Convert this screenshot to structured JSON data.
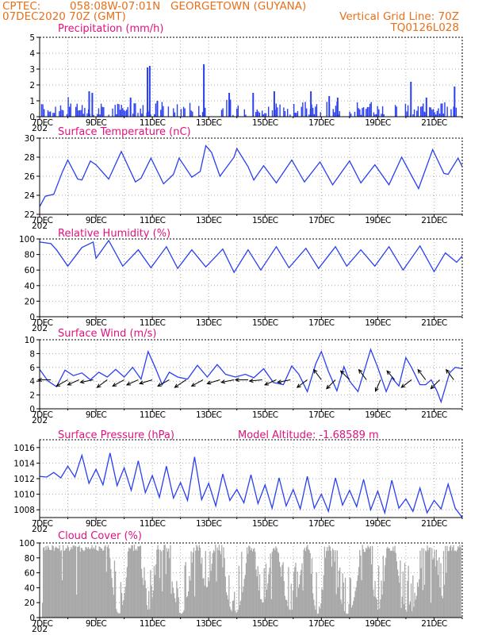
{
  "header": {
    "source": "CPTEC:",
    "location": "058:08W-07:01N   GEORGETOWN (GUYANA)",
    "run": "07DEC2020 70Z (GMT)",
    "grid": "Vertical Grid Line: 70Z",
    "code": "TQ0126L028"
  },
  "colors": {
    "header": "#e8701a",
    "title": "#e0117f",
    "line": "#2a3ff0",
    "bar": "#2a3ff0",
    "cloud": "#a8a8a8",
    "arrow": "#000000",
    "grid": "#999999"
  },
  "x_labels": [
    "7DEC",
    "9DEC",
    "11DEC",
    "13DEC",
    "15DEC",
    "17DEC",
    "19DEC",
    "21DEC"
  ],
  "x_start_label": "7DEC",
  "x_year": "202",
  "chart_data": [
    {
      "id": "precip",
      "type": "bar",
      "title": "Precipitation (mm/h)",
      "ylim": [
        0,
        5
      ],
      "yticks": [
        0,
        1,
        2,
        3,
        4,
        5
      ],
      "x_days": [
        0,
        15
      ],
      "gaps": [
        [
          5.9,
          6.4
        ],
        [
          12.2,
          12.6
        ]
      ],
      "peaks": [
        {
          "x": 1.73,
          "y": 1.6
        },
        {
          "x": 1.84,
          "y": 1.5
        },
        {
          "x": 3.8,
          "y": 3.1
        },
        {
          "x": 3.88,
          "y": 3.2
        },
        {
          "x": 3.2,
          "y": 1.2
        },
        {
          "x": 4.15,
          "y": 1.0
        },
        {
          "x": 5.8,
          "y": 3.3
        },
        {
          "x": 6.7,
          "y": 1.5
        },
        {
          "x": 7.55,
          "y": 1.5
        },
        {
          "x": 8.3,
          "y": 1.6
        },
        {
          "x": 9.6,
          "y": 1.6
        },
        {
          "x": 10.25,
          "y": 1.3
        },
        {
          "x": 10.55,
          "y": 1.2
        },
        {
          "x": 13.15,
          "y": 2.2
        },
        {
          "x": 13.7,
          "y": 1.2
        },
        {
          "x": 14.7,
          "y": 1.9
        }
      ]
    },
    {
      "id": "temp",
      "type": "line",
      "title": "Surface Temperature (nC)",
      "ylim": [
        22,
        30
      ],
      "yticks": [
        22,
        24,
        26,
        28,
        30
      ],
      "x_days": [
        0,
        15
      ],
      "points": [
        [
          0,
          22.8
        ],
        [
          0.2,
          23.9
        ],
        [
          0.5,
          24.1
        ],
        [
          0.8,
          26.4
        ],
        [
          1.0,
          27.7
        ],
        [
          1.35,
          25.7
        ],
        [
          1.5,
          25.6
        ],
        [
          1.8,
          27.6
        ],
        [
          2.0,
          27.2
        ],
        [
          2.45,
          25.7
        ],
        [
          2.9,
          28.6
        ],
        [
          3.4,
          25.4
        ],
        [
          3.6,
          25.8
        ],
        [
          3.95,
          27.9
        ],
        [
          4.4,
          25.2
        ],
        [
          4.75,
          26.2
        ],
        [
          4.95,
          27.9
        ],
        [
          5.4,
          25.9
        ],
        [
          5.7,
          26.5
        ],
        [
          5.9,
          29.2
        ],
        [
          6.1,
          28.5
        ],
        [
          6.4,
          26.0
        ],
        [
          6.9,
          28.0
        ],
        [
          7.0,
          28.9
        ],
        [
          7.4,
          27.0
        ],
        [
          7.6,
          25.6
        ],
        [
          7.95,
          27.1
        ],
        [
          8.4,
          25.3
        ],
        [
          8.95,
          27.7
        ],
        [
          9.4,
          25.4
        ],
        [
          9.95,
          27.5
        ],
        [
          10.4,
          25.1
        ],
        [
          11.0,
          27.6
        ],
        [
          11.4,
          25.3
        ],
        [
          11.9,
          27.2
        ],
        [
          12.4,
          25.1
        ],
        [
          12.85,
          28.0
        ],
        [
          13.45,
          24.7
        ],
        [
          13.95,
          28.8
        ],
        [
          14.35,
          26.3
        ],
        [
          14.5,
          26.2
        ],
        [
          14.85,
          27.9
        ],
        [
          15.0,
          27.0
        ]
      ]
    },
    {
      "id": "rh",
      "type": "line",
      "title": "Relative Humidity (%)",
      "ylim": [
        0,
        100
      ],
      "yticks": [
        0,
        20,
        40,
        60,
        80,
        100
      ],
      "x_days": [
        0,
        15
      ],
      "points": [
        [
          0,
          96
        ],
        [
          0.4,
          94
        ],
        [
          0.6,
          86
        ],
        [
          1.0,
          65
        ],
        [
          1.5,
          89
        ],
        [
          1.9,
          96
        ],
        [
          2.0,
          75
        ],
        [
          2.45,
          98
        ],
        [
          2.95,
          65
        ],
        [
          3.5,
          86
        ],
        [
          3.95,
          63
        ],
        [
          4.5,
          90
        ],
        [
          4.9,
          62
        ],
        [
          5.4,
          86
        ],
        [
          5.9,
          64
        ],
        [
          6.5,
          87
        ],
        [
          6.9,
          57
        ],
        [
          7.4,
          86
        ],
        [
          7.85,
          60
        ],
        [
          8.4,
          90
        ],
        [
          8.85,
          63
        ],
        [
          9.45,
          88
        ],
        [
          9.9,
          62
        ],
        [
          10.5,
          90
        ],
        [
          10.9,
          65
        ],
        [
          11.4,
          86
        ],
        [
          11.9,
          65
        ],
        [
          12.4,
          90
        ],
        [
          12.9,
          60
        ],
        [
          13.5,
          91
        ],
        [
          14.0,
          58
        ],
        [
          14.4,
          82
        ],
        [
          14.8,
          70
        ],
        [
          15.0,
          78
        ]
      ]
    },
    {
      "id": "wind",
      "type": "line",
      "title": "Surface Wind (m/s)",
      "ylim": [
        0,
        10
      ],
      "yticks": [
        0,
        2,
        4,
        6,
        8,
        10
      ],
      "x_days": [
        0,
        15
      ],
      "points": [
        [
          0,
          5.7
        ],
        [
          0.3,
          4.0
        ],
        [
          0.6,
          3.2
        ],
        [
          0.9,
          5.6
        ],
        [
          1.2,
          4.8
        ],
        [
          1.5,
          5.2
        ],
        [
          1.8,
          4.2
        ],
        [
          2.1,
          5.3
        ],
        [
          2.4,
          4.6
        ],
        [
          2.7,
          5.7
        ],
        [
          3.0,
          4.6
        ],
        [
          3.3,
          6.0
        ],
        [
          3.6,
          4.3
        ],
        [
          3.85,
          8.3
        ],
        [
          4.1,
          6.0
        ],
        [
          4.35,
          3.5
        ],
        [
          4.6,
          5.3
        ],
        [
          4.9,
          4.6
        ],
        [
          5.25,
          4.3
        ],
        [
          5.6,
          6.3
        ],
        [
          5.95,
          4.6
        ],
        [
          6.3,
          6.4
        ],
        [
          6.6,
          5.0
        ],
        [
          6.95,
          4.6
        ],
        [
          7.3,
          5.0
        ],
        [
          7.6,
          4.5
        ],
        [
          7.95,
          5.8
        ],
        [
          8.3,
          3.8
        ],
        [
          8.65,
          3.5
        ],
        [
          8.95,
          6.2
        ],
        [
          9.2,
          5.0
        ],
        [
          9.5,
          2.5
        ],
        [
          9.8,
          6.5
        ],
        [
          10.0,
          8.3
        ],
        [
          10.25,
          5.4
        ],
        [
          10.55,
          2.6
        ],
        [
          10.8,
          6.1
        ],
        [
          11.0,
          4.0
        ],
        [
          11.3,
          2.5
        ],
        [
          11.5,
          5.2
        ],
        [
          11.75,
          8.6
        ],
        [
          12.0,
          6.0
        ],
        [
          12.3,
          2.5
        ],
        [
          12.5,
          4.5
        ],
        [
          12.75,
          3.3
        ],
        [
          13.0,
          7.4
        ],
        [
          13.2,
          6.0
        ],
        [
          13.5,
          3.5
        ],
        [
          13.7,
          3.5
        ],
        [
          13.9,
          4.2
        ],
        [
          14.1,
          2.6
        ],
        [
          14.25,
          1.0
        ],
        [
          14.55,
          5.2
        ],
        [
          14.75,
          6.0
        ],
        [
          15.0,
          5.8
        ]
      ],
      "arrow_x": [
        0.4,
        1.0,
        1.4,
        1.9,
        2.4,
        3.0,
        3.5,
        4.0,
        4.6,
        5.2,
        5.8,
        6.4,
        6.9,
        7.4,
        7.9,
        8.4,
        8.9,
        9.5,
        10.0,
        10.5,
        11.0,
        11.6,
        12.1,
        12.6,
        13.2,
        13.7,
        14.2,
        14.7
      ],
      "arrow_vec": [
        [
          -1,
          0
        ],
        [
          -0.9,
          -0.5
        ],
        [
          -0.9,
          -0.4
        ],
        [
          -1,
          -0.2
        ],
        [
          -0.8,
          -0.6
        ],
        [
          -0.9,
          -0.5
        ],
        [
          -0.9,
          -0.4
        ],
        [
          -1,
          -0.3
        ],
        [
          -0.9,
          -0.5
        ],
        [
          -0.9,
          -0.6
        ],
        [
          -0.9,
          -0.5
        ],
        [
          -1,
          -0.3
        ],
        [
          -1,
          -0.2
        ],
        [
          -1,
          0
        ],
        [
          -1,
          -0.1
        ],
        [
          -0.9,
          -0.4
        ],
        [
          -1,
          -0.2
        ],
        [
          -0.8,
          -0.6
        ],
        [
          -0.6,
          0.8
        ],
        [
          -0.7,
          -0.7
        ],
        [
          -0.7,
          0.7
        ],
        [
          -0.6,
          0.8
        ],
        [
          -0.4,
          -0.9
        ],
        [
          -0.6,
          0.7
        ],
        [
          -0.8,
          -0.6
        ],
        [
          -0.6,
          0.8
        ],
        [
          -0.7,
          -0.7
        ],
        [
          -0.6,
          0.8
        ]
      ]
    },
    {
      "id": "pres",
      "type": "line",
      "title": "Surface Pressure (hPa)",
      "altitude": "Model Altitude: -1.68589 m",
      "ylim": [
        1007,
        1017
      ],
      "yticks": [
        1008,
        1010,
        1012,
        1014,
        1016
      ],
      "x_days": [
        0,
        15
      ],
      "points": [
        [
          0,
          1012.3
        ],
        [
          0.25,
          1012.2
        ],
        [
          0.5,
          1012.8
        ],
        [
          0.75,
          1012.1
        ],
        [
          1.0,
          1013.6
        ],
        [
          1.25,
          1012.2
        ],
        [
          1.5,
          1015.0
        ],
        [
          1.75,
          1011.4
        ],
        [
          2.0,
          1013.2
        ],
        [
          2.25,
          1011.2
        ],
        [
          2.5,
          1015.3
        ],
        [
          2.75,
          1011.1
        ],
        [
          3.0,
          1013.4
        ],
        [
          3.25,
          1010.5
        ],
        [
          3.5,
          1014.3
        ],
        [
          3.75,
          1010.2
        ],
        [
          4.0,
          1012.4
        ],
        [
          4.25,
          1009.6
        ],
        [
          4.5,
          1013.6
        ],
        [
          4.75,
          1009.5
        ],
        [
          5.0,
          1011.5
        ],
        [
          5.25,
          1009.2
        ],
        [
          5.5,
          1014.8
        ],
        [
          5.75,
          1009.3
        ],
        [
          6.0,
          1011.4
        ],
        [
          6.25,
          1008.5
        ],
        [
          6.5,
          1012.6
        ],
        [
          6.75,
          1009.2
        ],
        [
          7.0,
          1010.6
        ],
        [
          7.25,
          1008.9
        ],
        [
          7.5,
          1012.5
        ],
        [
          7.75,
          1008.8
        ],
        [
          8.0,
          1011.2
        ],
        [
          8.25,
          1008.2
        ],
        [
          8.5,
          1012.1
        ],
        [
          8.75,
          1008.5
        ],
        [
          9.0,
          1010.6
        ],
        [
          9.25,
          1008.1
        ],
        [
          9.5,
          1012.3
        ],
        [
          9.75,
          1008.2
        ],
        [
          10.0,
          1010.0
        ],
        [
          10.25,
          1007.8
        ],
        [
          10.5,
          1012.1
        ],
        [
          10.75,
          1008.6
        ],
        [
          11.0,
          1010.5
        ],
        [
          11.25,
          1008.4
        ],
        [
          11.5,
          1011.9
        ],
        [
          11.75,
          1008.0
        ],
        [
          12.0,
          1010.4
        ],
        [
          12.25,
          1007.6
        ],
        [
          12.5,
          1011.8
        ],
        [
          12.75,
          1008.2
        ],
        [
          13.0,
          1009.4
        ],
        [
          13.25,
          1007.8
        ],
        [
          13.5,
          1010.8
        ],
        [
          13.75,
          1007.6
        ],
        [
          14.0,
          1009.2
        ],
        [
          14.25,
          1008.1
        ],
        [
          14.5,
          1011.3
        ],
        [
          14.75,
          1008.2
        ],
        [
          15.0,
          1007.0
        ]
      ]
    },
    {
      "id": "cloud",
      "type": "bar",
      "title": "Cloud Cover (%)",
      "ylim": [
        0,
        100
      ],
      "yticks": [
        0,
        20,
        40,
        60,
        80,
        100
      ],
      "x_days": [
        0,
        15
      ],
      "dips": [
        {
          "x": 2.8,
          "w": 0.35,
          "min": 5
        },
        {
          "x": 3.85,
          "w": 0.3,
          "min": 10
        },
        {
          "x": 5.0,
          "w": 0.45,
          "min": 5
        },
        {
          "x": 5.9,
          "w": 0.25,
          "min": 40
        },
        {
          "x": 6.9,
          "w": 0.5,
          "min": 5
        },
        {
          "x": 7.9,
          "w": 0.3,
          "min": 20
        },
        {
          "x": 8.9,
          "w": 0.45,
          "min": 10
        },
        {
          "x": 9.85,
          "w": 0.3,
          "min": 5
        },
        {
          "x": 10.9,
          "w": 0.5,
          "min": 5
        },
        {
          "x": 12.0,
          "w": 0.3,
          "min": 10
        },
        {
          "x": 13.1,
          "w": 0.5,
          "min": 5
        },
        {
          "x": 14.2,
          "w": 0.3,
          "min": 20
        }
      ]
    }
  ]
}
